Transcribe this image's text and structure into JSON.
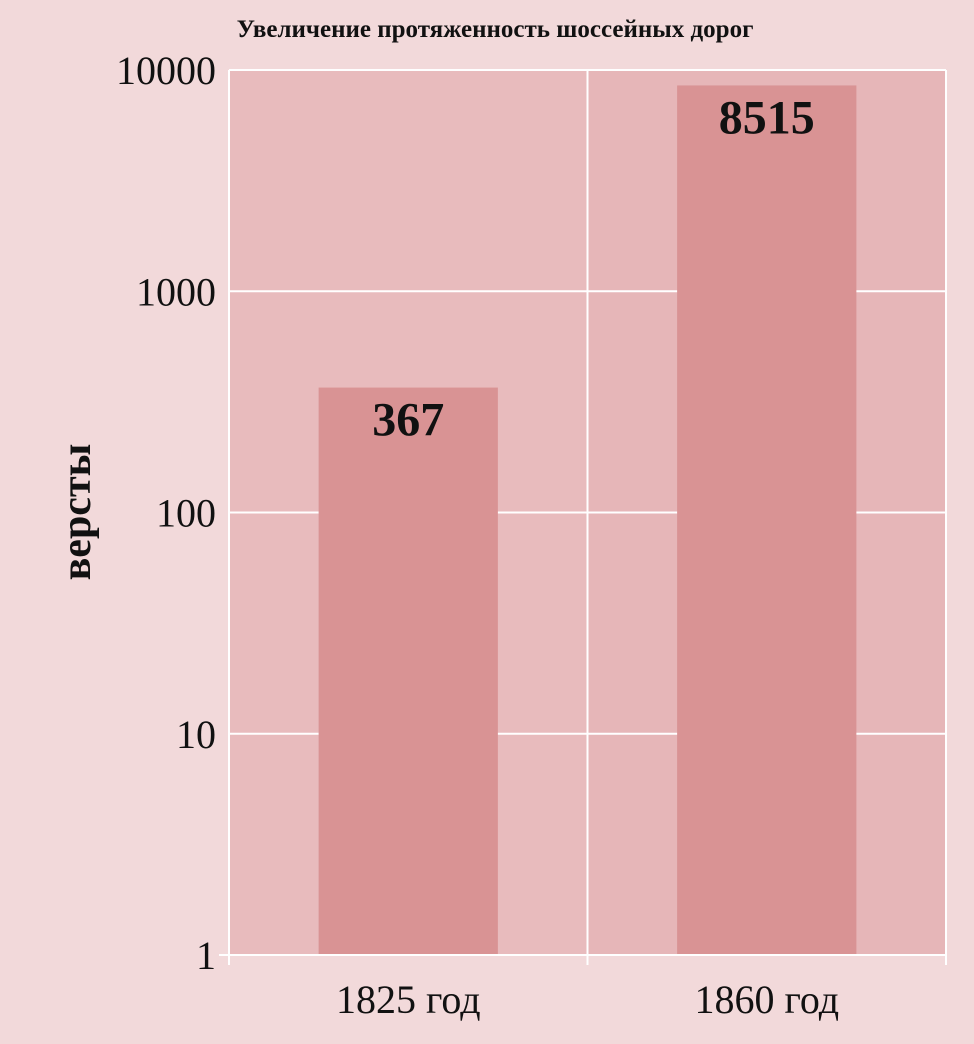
{
  "chart_data": {
    "type": "bar",
    "title": "Увеличение протяженность шоссейных дорог",
    "ylabel": "версты",
    "xlabel": "",
    "categories": [
      "1825 год",
      "1860 год"
    ],
    "values": [
      367,
      8515
    ],
    "data_labels": [
      "367",
      "8515"
    ],
    "y_scale": "log",
    "ylim": [
      1,
      10000
    ],
    "y_ticks": [
      1,
      10,
      100,
      1000,
      10000
    ],
    "y_tick_labels": [
      "1",
      "10",
      "100",
      "1000",
      "10000"
    ],
    "grid": true,
    "legend": "none",
    "colors": {
      "page_background": "#f2d9da",
      "plot_background": "#e6b6b8",
      "bar": "#d99394",
      "gridline": "#ffffff"
    }
  }
}
